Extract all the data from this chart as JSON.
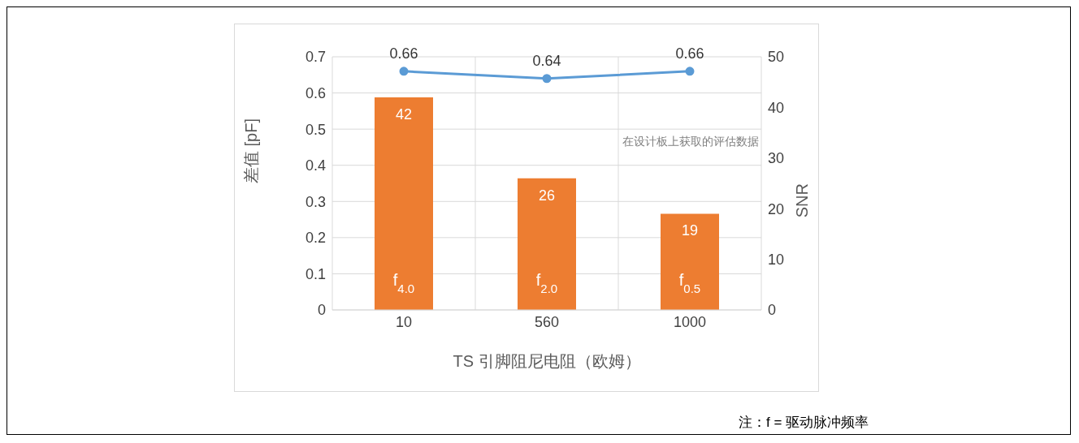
{
  "chart_data": {
    "type": "bar",
    "categories": [
      "10",
      "560",
      "1000"
    ],
    "series": [
      {
        "axis": "y2",
        "color": "#ed7d31",
        "values": [
          42,
          26,
          19
        ]
      },
      {
        "type": "line",
        "color": "#5b9bd5",
        "values": [
          0.66,
          0.64,
          0.66
        ]
      }
    ],
    "xlabel": "TS 引脚阻尼电阻（欧姆）",
    "ylabel": "差值 [pF]",
    "y2label": "SNR",
    "ylim": [
      0,
      0.7
    ],
    "yticks": [
      0,
      0.1,
      0.2,
      0.3,
      0.4,
      0.5,
      0.6,
      0.7
    ],
    "y2lim": [
      0,
      50
    ],
    "y2ticks": [
      0,
      10,
      20,
      30,
      40,
      50
    ],
    "grid": true,
    "legend": false,
    "marker": "circle",
    "data_labels": true,
    "annotations": [
      "在设计板上获取的评估数据",
      "注：f = 驱动脉冲频率",
      "f$_{4.0}$",
      "f$_{2.0}$",
      "f$_{0.5}$"
    ]
  }
}
